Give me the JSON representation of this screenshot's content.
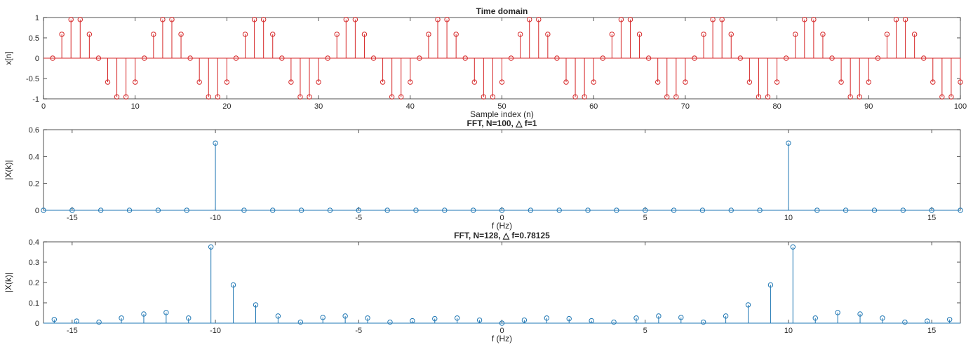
{
  "chart_data": [
    {
      "type": "stem",
      "title": "Time domain",
      "xlabel": "Sample index (n)",
      "ylabel": "x[n]",
      "xlim": [
        0,
        100
      ],
      "ylim": [
        -1,
        1
      ],
      "xticks": [
        0,
        10,
        20,
        30,
        40,
        50,
        60,
        70,
        80,
        90,
        100
      ],
      "xtick_labels": [
        "0",
        "10",
        "20",
        "30",
        "40",
        "50",
        "60",
        "70",
        "80",
        "90",
        "100"
      ],
      "yticks": [
        -1,
        -0.5,
        0,
        0.5,
        1
      ],
      "ytick_labels": [
        "-1",
        "-0.5",
        "0",
        "0.5",
        "1"
      ],
      "color": "#d62728",
      "grid": false,
      "x": [
        1,
        2,
        3,
        4,
        5,
        6,
        7,
        8,
        9,
        10,
        11,
        12,
        13,
        14,
        15,
        16,
        17,
        18,
        19,
        20,
        21,
        22,
        23,
        24,
        25,
        26,
        27,
        28,
        29,
        30,
        31,
        32,
        33,
        34,
        35,
        36,
        37,
        38,
        39,
        40,
        41,
        42,
        43,
        44,
        45,
        46,
        47,
        48,
        49,
        50,
        51,
        52,
        53,
        54,
        55,
        56,
        57,
        58,
        59,
        60,
        61,
        62,
        63,
        64,
        65,
        66,
        67,
        68,
        69,
        70,
        71,
        72,
        73,
        74,
        75,
        76,
        77,
        78,
        79,
        80,
        81,
        82,
        83,
        84,
        85,
        86,
        87,
        88,
        89,
        90,
        91,
        92,
        93,
        94,
        95,
        96,
        97,
        98,
        99,
        100
      ],
      "y": [
        0,
        0.588,
        0.951,
        0.951,
        0.588,
        0,
        -0.588,
        -0.951,
        -0.951,
        -0.588,
        0,
        0.588,
        0.951,
        0.951,
        0.588,
        0,
        -0.588,
        -0.951,
        -0.951,
        -0.588,
        0,
        0.588,
        0.951,
        0.951,
        0.588,
        0,
        -0.588,
        -0.951,
        -0.951,
        -0.588,
        0,
        0.588,
        0.951,
        0.951,
        0.588,
        0,
        -0.588,
        -0.951,
        -0.951,
        -0.588,
        0,
        0.588,
        0.951,
        0.951,
        0.588,
        0,
        -0.588,
        -0.951,
        -0.951,
        -0.588,
        0,
        0.588,
        0.951,
        0.951,
        0.588,
        0,
        -0.588,
        -0.951,
        -0.951,
        -0.588,
        0,
        0.588,
        0.951,
        0.951,
        0.588,
        0,
        -0.588,
        -0.951,
        -0.951,
        -0.588,
        0,
        0.588,
        0.951,
        0.951,
        0.588,
        0,
        -0.588,
        -0.951,
        -0.951,
        -0.588,
        0,
        0.588,
        0.951,
        0.951,
        0.588,
        0,
        -0.588,
        -0.951,
        -0.951,
        -0.588,
        0,
        0.588,
        0.951,
        0.951,
        0.588,
        0,
        -0.588,
        -0.951,
        -0.951,
        -0.588
      ]
    },
    {
      "type": "stem",
      "title": "FFT, N=100, △ f=1",
      "xlabel": "f (Hz)",
      "ylabel": "|X(k)|",
      "xlim": [
        -16,
        16
      ],
      "ylim": [
        0,
        0.6
      ],
      "xticks": [
        -15,
        -10,
        -5,
        0,
        5,
        10,
        15
      ],
      "xtick_labels": [
        "-15",
        "-10",
        "-5",
        "0",
        "5",
        "10",
        "15"
      ],
      "yticks": [
        0,
        0.2,
        0.4,
        0.6
      ],
      "ytick_labels": [
        "0",
        "0.2",
        "0.4",
        "0.6"
      ],
      "color": "#1f77b4",
      "grid": false,
      "x": [
        -16,
        -15,
        -14,
        -13,
        -12,
        -11,
        -10,
        -9,
        -8,
        -7,
        -6,
        -5,
        -4,
        -3,
        -2,
        -1,
        0,
        1,
        2,
        3,
        4,
        5,
        6,
        7,
        8,
        9,
        10,
        11,
        12,
        13,
        14,
        15,
        16
      ],
      "y": [
        0,
        0,
        0,
        0,
        0,
        0,
        0.5,
        0,
        0,
        0,
        0,
        0,
        0,
        0,
        0,
        0,
        0,
        0,
        0,
        0,
        0,
        0,
        0,
        0,
        0,
        0,
        0.5,
        0,
        0,
        0,
        0,
        0,
        0
      ]
    },
    {
      "type": "stem",
      "title": "FFT, N=128, △ f=0.78125",
      "xlabel": "f (Hz)",
      "ylabel": "|X(k)|",
      "xlim": [
        -16,
        16
      ],
      "ylim": [
        0,
        0.4
      ],
      "xticks": [
        -15,
        -10,
        -5,
        0,
        5,
        10,
        15
      ],
      "xtick_labels": [
        "-15",
        "-10",
        "-5",
        "0",
        "5",
        "10",
        "15"
      ],
      "yticks": [
        0,
        0.1,
        0.2,
        0.3,
        0.4
      ],
      "ytick_labels": [
        "0",
        "0.1",
        "0.2",
        "0.3",
        "0.4"
      ],
      "color": "#1f77b4",
      "grid": false,
      "x": [
        -15.625,
        -14.844,
        -14.063,
        -13.281,
        -12.5,
        -11.719,
        -10.938,
        -10.156,
        -9.375,
        -8.594,
        -7.813,
        -7.031,
        -6.25,
        -5.469,
        -4.688,
        -3.906,
        -3.125,
        -2.344,
        -1.563,
        -0.781,
        0,
        0.781,
        1.563,
        2.344,
        3.125,
        3.906,
        4.688,
        5.469,
        6.25,
        7.031,
        7.813,
        8.594,
        9.375,
        10.156,
        10.938,
        11.719,
        12.5,
        13.281,
        14.063,
        14.844,
        15.625
      ],
      "y": [
        0.018,
        0.01,
        0.005,
        0.025,
        0.045,
        0.052,
        0.025,
        0.375,
        0.188,
        0.09,
        0.035,
        0.005,
        0.028,
        0.035,
        0.025,
        0.005,
        0.012,
        0.022,
        0.025,
        0.015,
        0,
        0.015,
        0.025,
        0.022,
        0.012,
        0.005,
        0.025,
        0.035,
        0.028,
        0.005,
        0.035,
        0.09,
        0.188,
        0.375,
        0.025,
        0.052,
        0.045,
        0.025,
        0.005,
        0.01,
        0.018
      ]
    }
  ]
}
